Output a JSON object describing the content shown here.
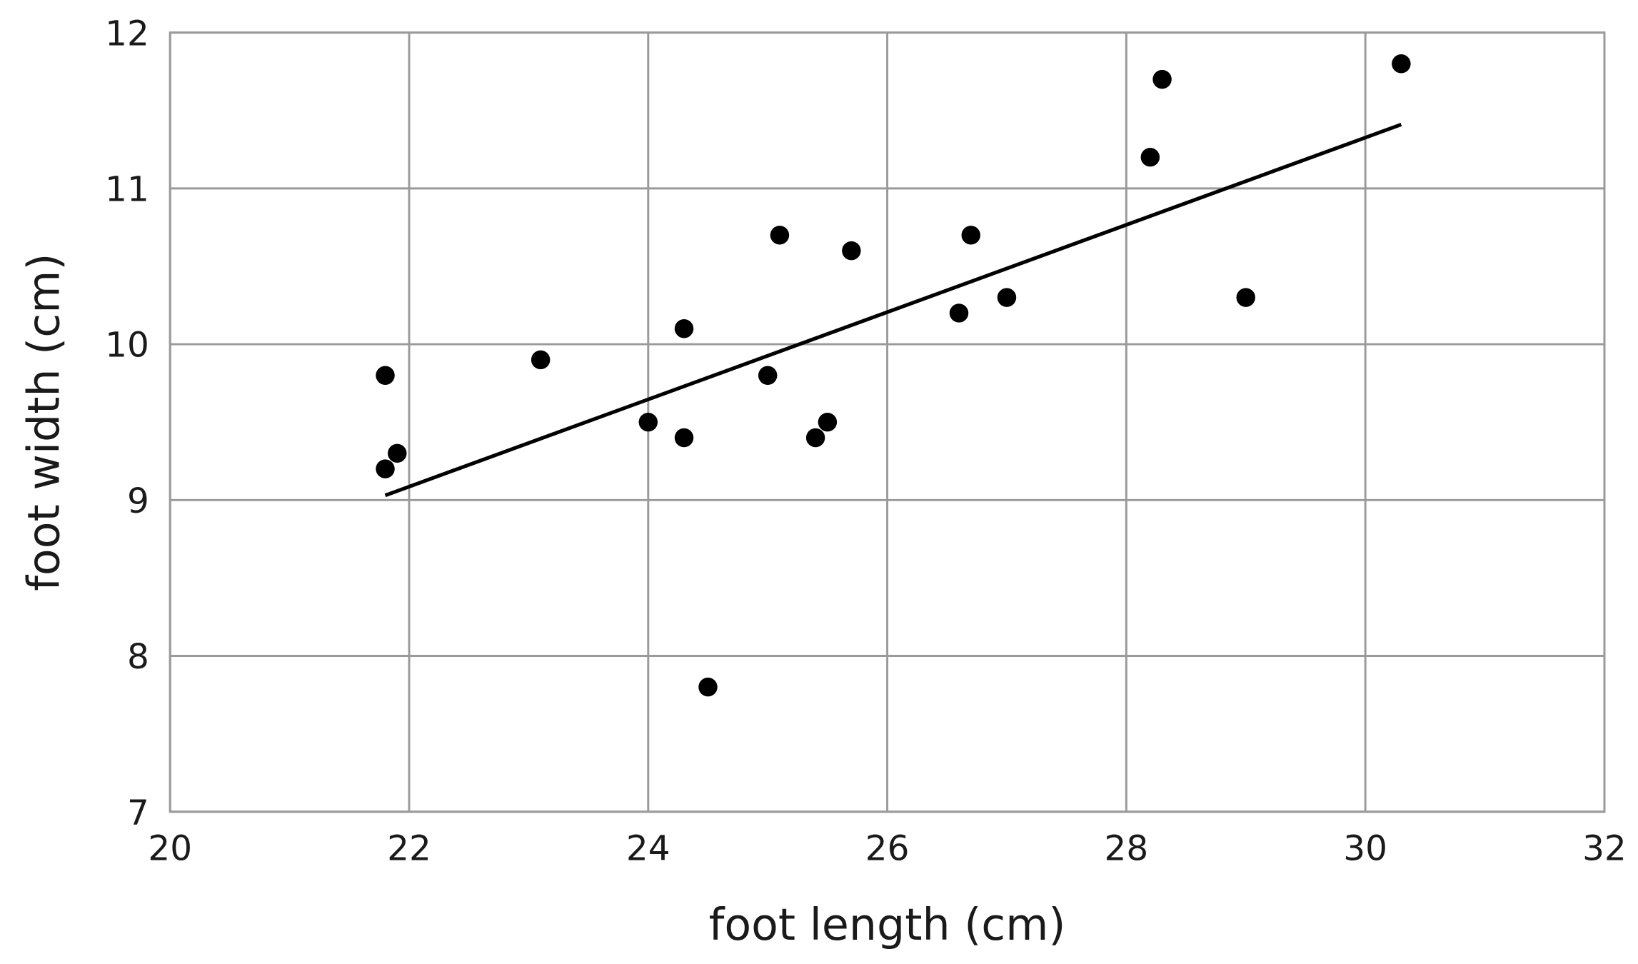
{
  "chart_data": {
    "type": "scatter",
    "title": "",
    "xlabel": "foot length (cm)",
    "ylabel": "foot width (cm)",
    "xlim": [
      20,
      32
    ],
    "ylim": [
      7,
      12
    ],
    "xticks": [
      20,
      22,
      24,
      26,
      28,
      30,
      32
    ],
    "yticks": [
      7,
      8,
      9,
      10,
      11,
      12
    ],
    "grid": true,
    "legend": "none",
    "point_color": "#000000",
    "grid_color": "#9a9a9a",
    "points": [
      {
        "x": 21.8,
        "y": 9.8
      },
      {
        "x": 21.8,
        "y": 9.2
      },
      {
        "x": 21.9,
        "y": 9.3
      },
      {
        "x": 23.1,
        "y": 9.9
      },
      {
        "x": 24.0,
        "y": 9.5
      },
      {
        "x": 24.3,
        "y": 10.1
      },
      {
        "x": 24.3,
        "y": 9.4
      },
      {
        "x": 24.5,
        "y": 7.8
      },
      {
        "x": 25.0,
        "y": 9.8
      },
      {
        "x": 25.1,
        "y": 10.7
      },
      {
        "x": 25.4,
        "y": 9.4
      },
      {
        "x": 25.5,
        "y": 9.5
      },
      {
        "x": 25.7,
        "y": 10.6
      },
      {
        "x": 26.6,
        "y": 10.2
      },
      {
        "x": 26.7,
        "y": 10.7
      },
      {
        "x": 27.0,
        "y": 10.3
      },
      {
        "x": 28.2,
        "y": 11.2
      },
      {
        "x": 28.3,
        "y": 11.7
      },
      {
        "x": 29.0,
        "y": 10.3
      },
      {
        "x": 30.3,
        "y": 11.8
      }
    ],
    "trend_line": {
      "x": [
        21.8,
        30.3
      ],
      "y": [
        9.03,
        11.41
      ]
    }
  }
}
